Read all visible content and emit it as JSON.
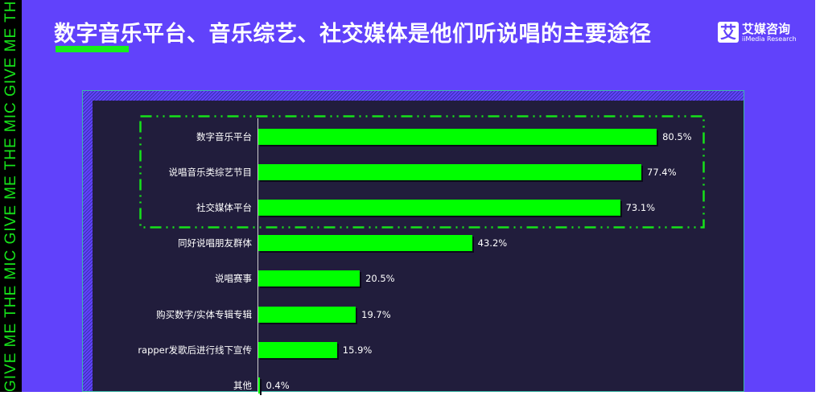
{
  "side_text": "GIVE ME THE MIC   GIVE ME THE MIC   GIVE ME THE MIC   GIVE ME THE MIC",
  "title": "数字音乐平台、音乐综艺、社交媒体是他们听说唱的主要途径",
  "logo": {
    "mark": "艾",
    "cn": "艾媒咨询",
    "en": "iiMedia Research"
  },
  "colors": {
    "background": "#6142fb",
    "bar": "#00ff00",
    "panel": "#211d3c",
    "highlight_box": "#16e21a"
  },
  "chart_data": {
    "type": "bar",
    "orientation": "horizontal",
    "categories": [
      "数字音乐平台",
      "说唱音乐类综艺节目",
      "社交媒体平台",
      "同好说唱朋友群体",
      "说唱赛事",
      "购买数字/实体专辑专辑",
      "rapper发歌后进行线下宣传",
      "其他"
    ],
    "values": [
      80.5,
      77.4,
      73.1,
      43.2,
      20.5,
      19.7,
      15.9,
      0.4
    ],
    "labels": [
      "80.5%",
      "77.4%",
      "73.1%",
      "43.2%",
      "20.5%",
      "19.7%",
      "15.9%",
      "0.4%"
    ],
    "unit": "%",
    "highlighted": [
      "数字音乐平台",
      "说唱音乐类综艺节目",
      "社交媒体平台"
    ],
    "grid": false
  }
}
